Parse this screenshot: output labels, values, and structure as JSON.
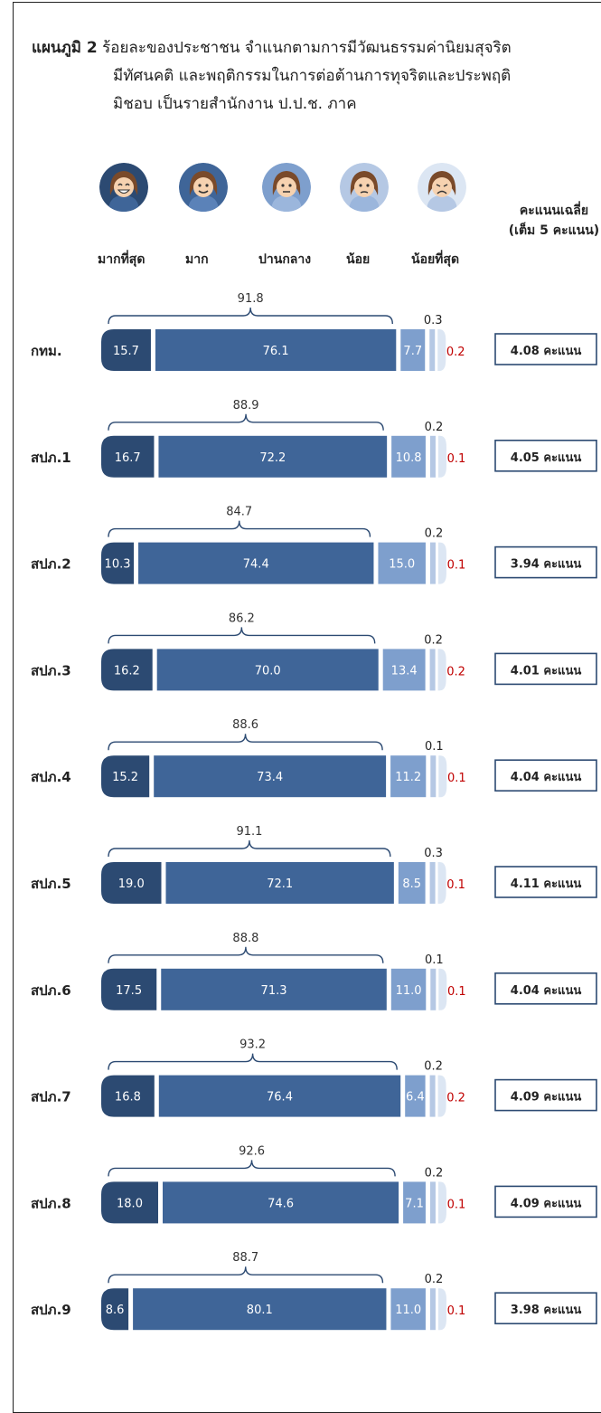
{
  "title": {
    "prefix": "แผนภูมิ 2",
    "line1": "ร้อยละของประชาชน จำแนกตามการมีวัฒนธรรมค่านิยมสุจริต",
    "line2": "มีทัศนคติ และพฤติกรรมในการต่อต้านการทุจริตและประพฤติ",
    "line3": "มิชอบ  เป็นรายสำนักงาน ป.ป.ช. ภาค"
  },
  "categories": [
    "มากที่สุด",
    "มาก",
    "ปานกลาง",
    "น้อย",
    "น้อยที่สุด"
  ],
  "average_header": {
    "line1": "คะแนนเฉลี่ย",
    "line2": "(เต็ม 5 คะแนน)"
  },
  "colors": {
    "most": "#2c4a72",
    "much": "#3f6598",
    "moderate": "#7e9fcd",
    "little": "#b5c8e4",
    "least": "#dce6f3",
    "least_label": "#c00000",
    "bracket": "#2c4a72"
  },
  "chart_data": {
    "type": "bar",
    "stacked": true,
    "orientation": "horizontal",
    "categories": [
      "กทม.",
      "สปภ.1",
      "สปภ.2",
      "สปภ.3",
      "สปภ.4",
      "สปภ.5",
      "สปภ.6",
      "สปภ.7",
      "สปภ.8",
      "สปภ.9"
    ],
    "series": [
      {
        "name": "มากที่สุด",
        "values": [
          15.7,
          16.7,
          10.3,
          16.2,
          15.2,
          19.0,
          17.5,
          16.8,
          18.0,
          8.6
        ]
      },
      {
        "name": "มาก",
        "values": [
          76.1,
          72.2,
          74.4,
          70.0,
          73.4,
          72.1,
          71.3,
          76.4,
          74.6,
          80.1
        ]
      },
      {
        "name": "ปานกลาง",
        "values": [
          7.7,
          10.8,
          15.0,
          13.4,
          11.2,
          8.5,
          11.0,
          6.4,
          7.1,
          11.0
        ]
      },
      {
        "name": "น้อย",
        "values": [
          0.3,
          0.2,
          0.2,
          0.2,
          0.1,
          0.3,
          0.1,
          0.2,
          0.2,
          0.2
        ]
      },
      {
        "name": "น้อยที่สุด",
        "values": [
          0.2,
          0.1,
          0.1,
          0.2,
          0.1,
          0.1,
          0.1,
          0.2,
          0.1,
          0.1
        ]
      }
    ],
    "combined_top2": [
      91.8,
      88.9,
      84.7,
      86.2,
      88.6,
      91.1,
      88.8,
      93.2,
      92.6,
      88.7
    ],
    "average_scores": [
      "4.08 คะแนน",
      "4.05 คะแนน",
      "3.94 คะแนน",
      "4.01 คะแนน",
      "4.04 คะแนน",
      "4.11 คะแนน",
      "4.04 คะแนน",
      "4.09 คะแนน",
      "4.09 คะแนน",
      "3.98 คะแนน"
    ],
    "unit": "ร้อยละ"
  }
}
